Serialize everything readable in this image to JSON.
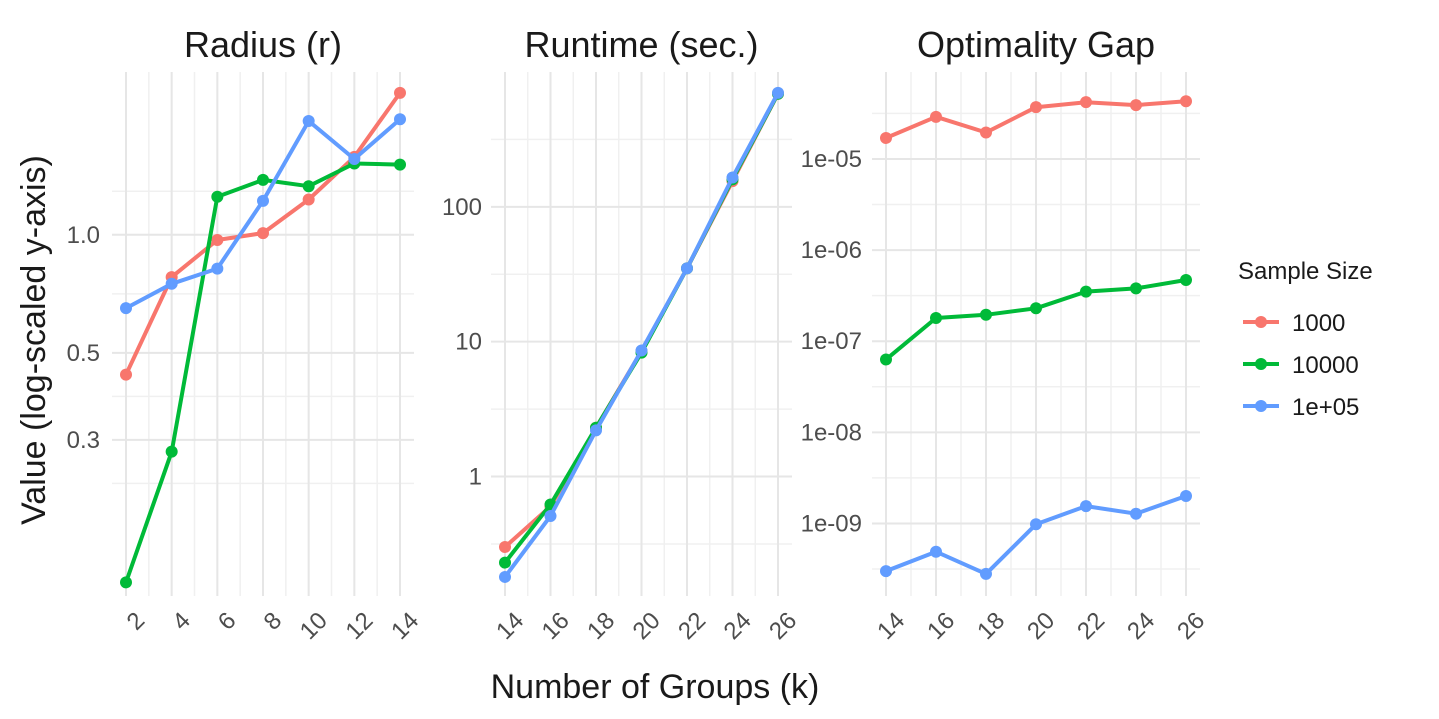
{
  "figure": {
    "ylabel": "Value (log-scaled y-axis)",
    "xlabel": "Number of Groups (k)"
  },
  "legend": {
    "title": "Sample Size",
    "position": "right",
    "items": [
      {
        "label": "1000",
        "color": "#F8766D"
      },
      {
        "label": "10000",
        "color": "#00BA38"
      },
      {
        "label": "1e+05",
        "color": "#619CFF"
      }
    ]
  },
  "chart_data": [
    {
      "type": "line",
      "title": "Radius (r)",
      "y_scale": "log",
      "grid": true,
      "x": [
        2,
        4,
        6,
        8,
        10,
        12,
        14
      ],
      "x_ticks": [
        "2",
        "4",
        "6",
        "8",
        "10",
        "12",
        "14"
      ],
      "y_ticks": [
        {
          "value": 1.0,
          "label": "1.0"
        },
        {
          "value": 0.5,
          "label": "0.5"
        },
        {
          "value": 0.3,
          "label": "0.3"
        }
      ],
      "ylim": [
        0.12,
        2.6
      ],
      "series": [
        {
          "name": "1000",
          "values": [
            0.44,
            0.78,
            0.97,
            1.01,
            1.23,
            1.58,
            2.3
          ]
        },
        {
          "name": "10000",
          "values": [
            0.13,
            0.28,
            1.25,
            1.38,
            1.33,
            1.52,
            1.51
          ]
        },
        {
          "name": "1e+05",
          "values": [
            0.65,
            0.75,
            0.82,
            1.22,
            1.95,
            1.56,
            1.97
          ]
        }
      ]
    },
    {
      "type": "line",
      "title": "Runtime (sec.)",
      "y_scale": "log",
      "grid": true,
      "x": [
        14,
        16,
        18,
        20,
        22,
        24,
        26
      ],
      "x_ticks": [
        "14",
        "16",
        "18",
        "20",
        "22",
        "24",
        "26"
      ],
      "y_ticks": [
        {
          "value": 100,
          "label": "100"
        },
        {
          "value": 10,
          "label": "10"
        },
        {
          "value": 1,
          "label": "1"
        }
      ],
      "ylim": [
        0.13,
        1000
      ],
      "series": [
        {
          "name": "1000",
          "values": [
            0.3,
            0.6,
            2.3,
            8.5,
            35,
            155,
            690
          ]
        },
        {
          "name": "10000",
          "values": [
            0.23,
            0.62,
            2.3,
            8.3,
            35,
            160,
            690
          ]
        },
        {
          "name": "1e+05",
          "values": [
            0.18,
            0.51,
            2.2,
            8.6,
            35,
            165,
            700
          ]
        }
      ]
    },
    {
      "type": "line",
      "title": "Optimality Gap",
      "y_scale": "log",
      "grid": true,
      "x": [
        14,
        16,
        18,
        20,
        22,
        24,
        26
      ],
      "x_ticks": [
        "14",
        "16",
        "18",
        "20",
        "22",
        "24",
        "26"
      ],
      "y_ticks": [
        {
          "value": 1e-05,
          "label": "1e-05"
        },
        {
          "value": 1e-06,
          "label": "1e-06"
        },
        {
          "value": 1e-07,
          "label": "1e-07"
        },
        {
          "value": 1e-08,
          "label": "1e-08"
        },
        {
          "value": 1e-09,
          "label": "1e-09"
        }
      ],
      "ylim": [
        1.6e-10,
        9e-05
      ],
      "series": [
        {
          "name": "1000",
          "values": [
            1.7e-05,
            2.9e-05,
            1.95e-05,
            3.7e-05,
            4.2e-05,
            3.9e-05,
            4.3e-05
          ]
        },
        {
          "name": "10000",
          "values": [
            6.3e-08,
            1.8e-07,
            1.95e-07,
            2.3e-07,
            3.5e-07,
            3.8e-07,
            4.7e-07
          ]
        },
        {
          "name": "1e+05",
          "values": [
            3e-10,
            4.9e-10,
            2.8e-10,
            9.8e-10,
            1.55e-09,
            1.28e-09,
            2e-09
          ]
        }
      ]
    }
  ]
}
